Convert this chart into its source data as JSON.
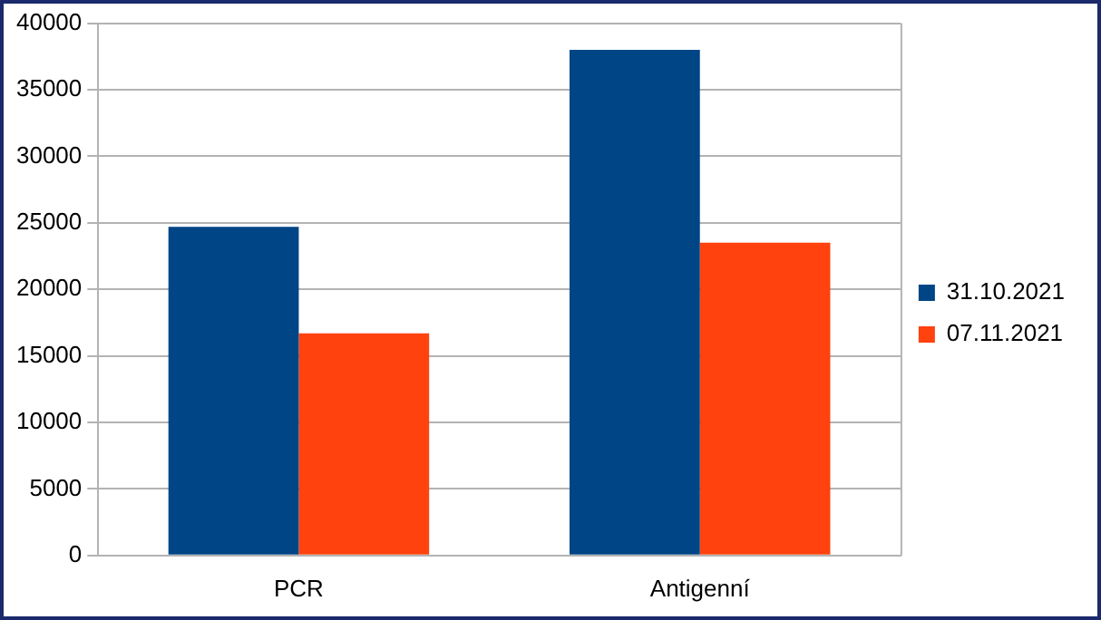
{
  "chart_data": {
    "type": "bar",
    "categories": [
      "PCR",
      "Antigenní"
    ],
    "series": [
      {
        "name": "31.10.2021",
        "color": "#004586",
        "values": [
          24700,
          38000
        ]
      },
      {
        "name": "07.11.2021",
        "color": "#ff420e",
        "values": [
          16700,
          23500
        ]
      }
    ],
    "ylim": [
      0,
      40000
    ],
    "yticks": [
      0,
      5000,
      10000,
      15000,
      20000,
      25000,
      30000,
      35000,
      40000
    ],
    "grid": "y",
    "legend": "right"
  }
}
